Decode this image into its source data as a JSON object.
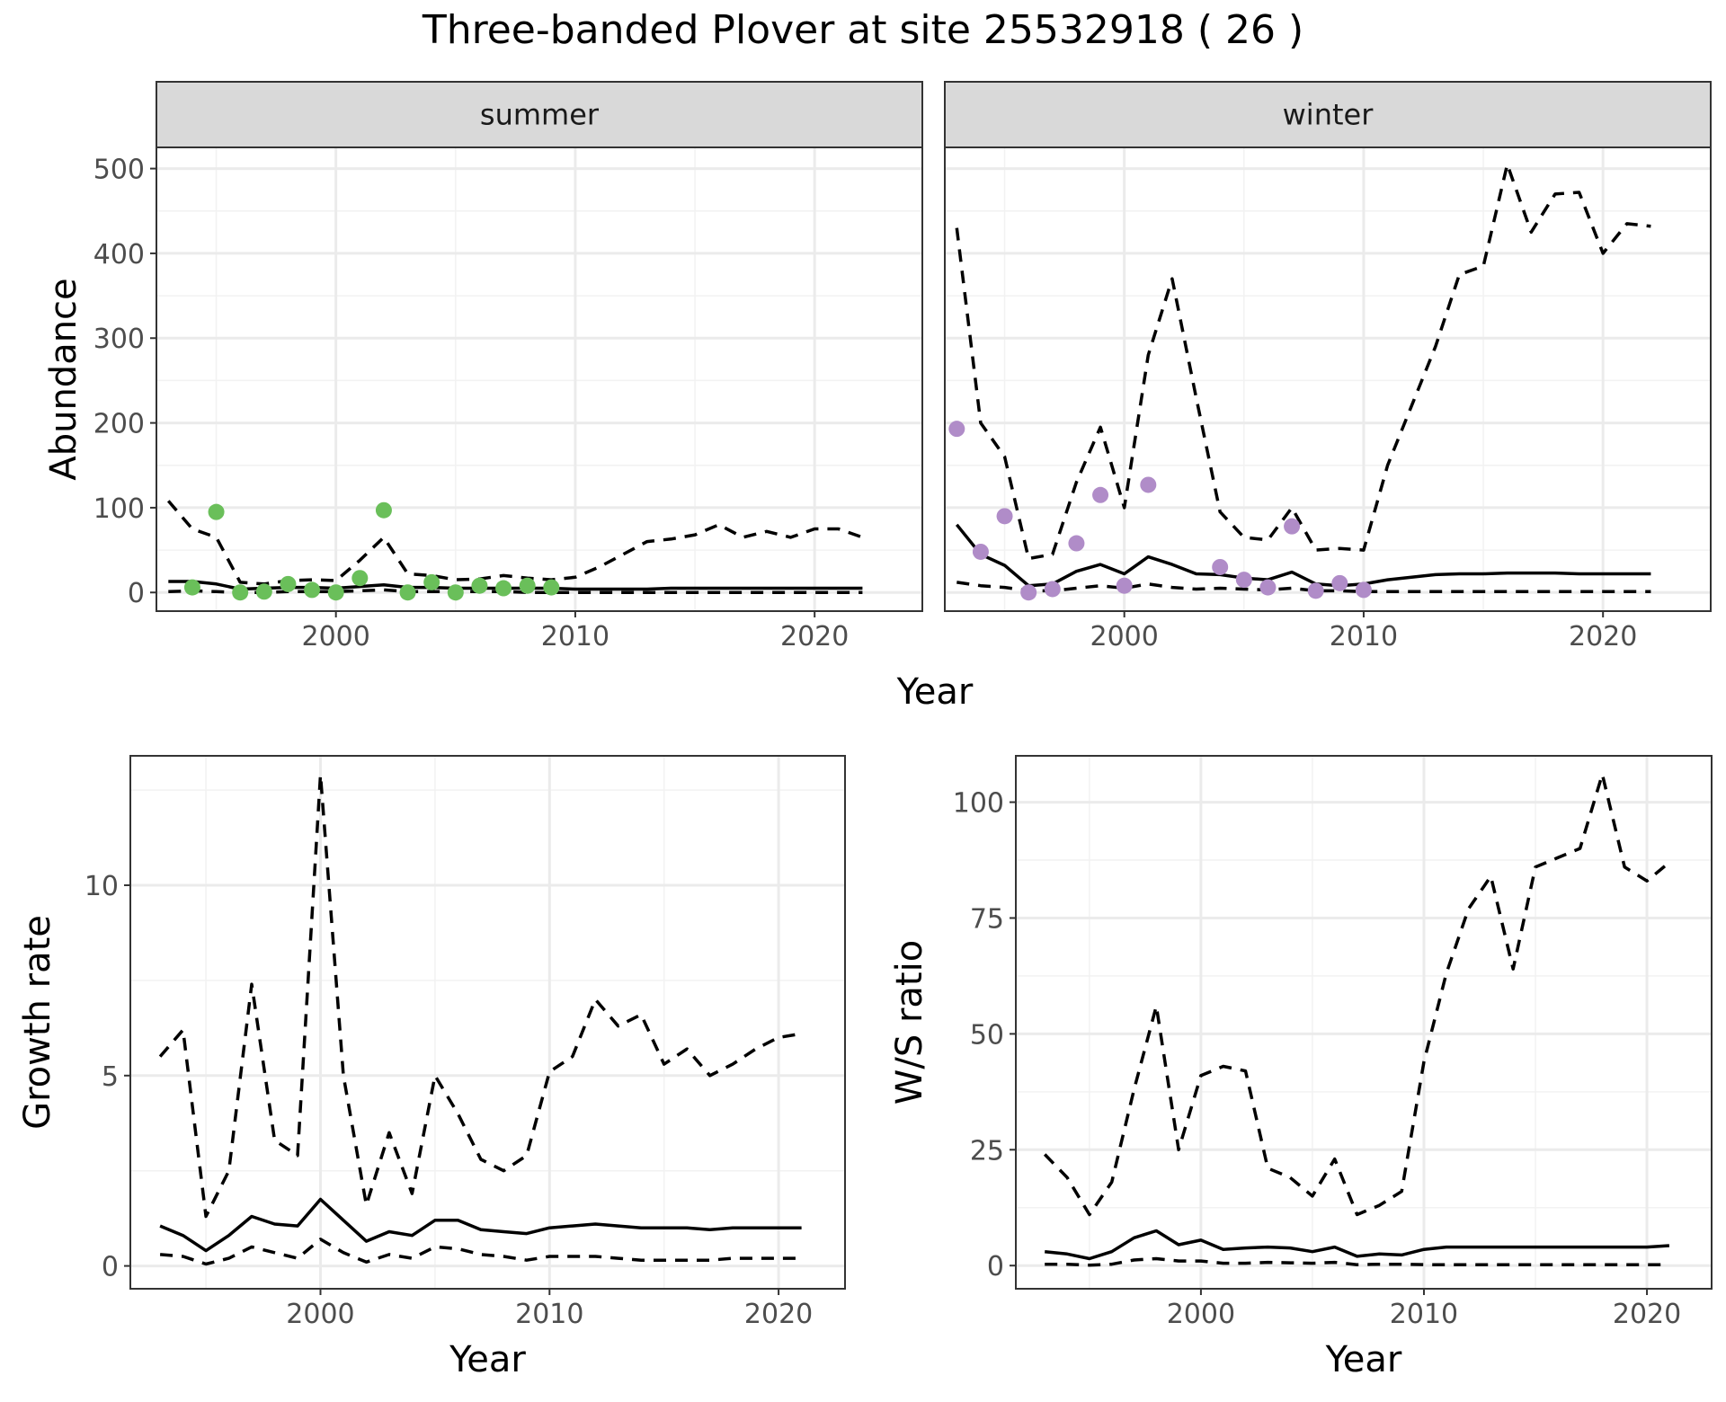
{
  "chart_data": {
    "title": "Three-banded Plover at site 25532918 ( 26 )",
    "panels": [
      {
        "type": "line",
        "facet": "summer",
        "xlabel": "",
        "ylabel": "Abundance",
        "xlim": [
          1992.5,
          2024.5
        ],
        "ylim": [
          -22,
          525
        ],
        "xticks": [
          2000,
          2010,
          2020
        ],
        "yticks": [
          0,
          100,
          200,
          300,
          400,
          500
        ],
        "point_color": "#6abf5a",
        "series": [
          {
            "style": "solid",
            "x": [
              1993,
              1994,
              1995,
              1996,
              1997,
              1998,
              1999,
              2000,
              2001,
              2002,
              2003,
              2004,
              2005,
              2006,
              2007,
              2008,
              2009,
              2010,
              2011,
              2012,
              2013,
              2014,
              2015,
              2016,
              2017,
              2018,
              2019,
              2020,
              2021,
              2022
            ],
            "y": [
              13,
              13,
              10,
              4,
              5,
              6,
              6,
              5,
              7,
              9,
              6,
              6,
              5,
              5,
              5,
              5,
              5,
              4,
              4,
              4,
              4,
              5,
              5,
              5,
              5,
              5,
              5,
              5,
              5,
              5
            ]
          },
          {
            "style": "dashed",
            "x": [
              1993,
              1994,
              1995,
              1996,
              1997,
              1998,
              1999,
              2000,
              2001,
              2002,
              2003,
              2004,
              2005,
              2006,
              2007,
              2008,
              2009,
              2010,
              2011,
              2012,
              2013,
              2014,
              2015,
              2016,
              2017,
              2018,
              2019,
              2020,
              2021,
              2022
            ],
            "y": [
              108,
              75,
              65,
              12,
              10,
              14,
              15,
              14,
              38,
              65,
              22,
              20,
              15,
              16,
              20,
              17,
              15,
              18,
              30,
              45,
              60,
              63,
              68,
              80,
              65,
              72,
              65,
              75,
              75,
              65
            ]
          },
          {
            "style": "dashed",
            "x": [
              1993,
              1994,
              1995,
              1996,
              1997,
              1998,
              1999,
              2000,
              2001,
              2002,
              2003,
              2004,
              2005,
              2006,
              2007,
              2008,
              2009,
              2010,
              2011,
              2012,
              2013,
              2014,
              2015,
              2016,
              2017,
              2018,
              2019,
              2020,
              2021,
              2022
            ],
            "y": [
              1,
              2,
              1,
              0,
              0,
              1,
              1,
              1,
              2,
              3,
              1,
              1,
              1,
              1,
              1,
              0,
              0,
              0,
              0,
              0,
              0,
              0,
              0,
              0,
              0,
              0,
              0,
              0,
              0,
              0
            ]
          }
        ],
        "points": {
          "x": [
            1994,
            1995,
            1996,
            1997,
            1998,
            1999,
            2000,
            2001,
            2002,
            2003,
            2004,
            2005,
            2006,
            2007,
            2008,
            2009
          ],
          "y": [
            6,
            95,
            0,
            1,
            10,
            3,
            0,
            17,
            97,
            0,
            12,
            0,
            8,
            5,
            8,
            6
          ]
        }
      },
      {
        "type": "line",
        "facet": "winter",
        "xlabel": "",
        "ylabel": "",
        "xlim": [
          1992.5,
          2024.5
        ],
        "ylim": [
          -22,
          525
        ],
        "xticks": [
          2000,
          2010,
          2020
        ],
        "yticks": [
          0,
          100,
          200,
          300,
          400,
          500
        ],
        "point_color": "#b08cc8",
        "series": [
          {
            "style": "solid",
            "x": [
              1993,
              1994,
              1995,
              1996,
              1997,
              1998,
              1999,
              2000,
              2001,
              2002,
              2003,
              2004,
              2005,
              2006,
              2007,
              2008,
              2009,
              2010,
              2011,
              2012,
              2013,
              2014,
              2015,
              2016,
              2017,
              2018,
              2019,
              2020,
              2021,
              2022
            ],
            "y": [
              80,
              45,
              32,
              8,
              10,
              25,
              33,
              22,
              42,
              33,
              22,
              21,
              17,
              15,
              24,
              10,
              8,
              10,
              15,
              18,
              21,
              22,
              22,
              23,
              23,
              23,
              22,
              22,
              22,
              22
            ]
          },
          {
            "style": "dashed",
            "x": [
              1993,
              1994,
              1995,
              1996,
              1997,
              1998,
              1999,
              2000,
              2001,
              2002,
              2003,
              2004,
              2005,
              2006,
              2007,
              2008,
              2009,
              2010,
              2011,
              2012,
              2013,
              2014,
              2015,
              2016,
              2017,
              2018,
              2019,
              2020,
              2021,
              2022
            ],
            "y": [
              430,
              200,
              160,
              40,
              45,
              130,
              195,
              100,
              280,
              370,
              230,
              95,
              65,
              62,
              100,
              50,
              52,
              50,
              150,
              220,
              290,
              375,
              385,
              505,
              425,
              470,
              472,
              400,
              435,
              432
            ]
          },
          {
            "style": "dashed",
            "x": [
              1993,
              1994,
              1995,
              1996,
              1997,
              1998,
              1999,
              2000,
              2001,
              2002,
              2003,
              2004,
              2005,
              2006,
              2007,
              2008,
              2009,
              2010,
              2011,
              2012,
              2013,
              2014,
              2015,
              2016,
              2017,
              2018,
              2019,
              2020,
              2021,
              2022
            ],
            "y": [
              12,
              8,
              6,
              2,
              2,
              5,
              8,
              5,
              10,
              6,
              4,
              5,
              4,
              3,
              5,
              2,
              2,
              1,
              1,
              1,
              1,
              1,
              1,
              1,
              1,
              1,
              1,
              1,
              1,
              1
            ]
          }
        ],
        "points": {
          "x": [
            1993,
            1994,
            1995,
            1996,
            1997,
            1998,
            1999,
            2000,
            2001,
            2004,
            2005,
            2006,
            2007,
            2008,
            2009,
            2010
          ],
          "y": [
            193,
            48,
            90,
            0,
            4,
            58,
            115,
            8,
            127,
            30,
            15,
            6,
            78,
            2,
            11,
            3
          ]
        }
      },
      {
        "type": "line",
        "facet": "",
        "xlabel": "Year",
        "ylabel": "Growth rate",
        "xlim": [
          1991.7,
          2022.9
        ],
        "ylim": [
          -0.6,
          13.4
        ],
        "xticks": [
          2000,
          2010,
          2020
        ],
        "yticks": [
          0,
          5,
          10
        ],
        "series": [
          {
            "style": "solid",
            "x": [
              1993,
              1994,
              1995,
              1996,
              1997,
              1998,
              1999,
              2000,
              2001,
              2002,
              2003,
              2004,
              2005,
              2006,
              2007,
              2008,
              2009,
              2010,
              2011,
              2012,
              2013,
              2014,
              2015,
              2016,
              2017,
              2018,
              2019,
              2020,
              2021
            ],
            "y": [
              1.05,
              0.8,
              0.4,
              0.8,
              1.3,
              1.1,
              1.05,
              1.75,
              1.2,
              0.65,
              0.9,
              0.8,
              1.2,
              1.2,
              0.95,
              0.9,
              0.85,
              1.0,
              1.05,
              1.1,
              1.05,
              1.0,
              1.0,
              1.0,
              0.95,
              1.0,
              1.0,
              1.0,
              1.0
            ]
          },
          {
            "style": "dashed",
            "x": [
              1993,
              1994,
              1995,
              1996,
              1997,
              1998,
              1999,
              2000,
              2001,
              2002,
              2003,
              2004,
              2005,
              2006,
              2007,
              2008,
              2009,
              2010,
              2011,
              2012,
              2013,
              2014,
              2015,
              2016,
              2017,
              2018,
              2019,
              2020,
              2021
            ],
            "y": [
              5.5,
              6.2,
              1.3,
              2.5,
              7.4,
              3.3,
              2.9,
              12.9,
              5.0,
              1.6,
              3.5,
              1.9,
              5.0,
              4.0,
              2.8,
              2.5,
              2.9,
              5.1,
              5.5,
              7.0,
              6.3,
              6.6,
              5.3,
              5.7,
              5.0,
              5.3,
              5.7,
              6.0,
              6.1
            ]
          },
          {
            "style": "dashed",
            "x": [
              1993,
              1994,
              1995,
              1996,
              1997,
              1998,
              1999,
              2000,
              2001,
              2002,
              2003,
              2004,
              2005,
              2006,
              2007,
              2008,
              2009,
              2010,
              2011,
              2012,
              2013,
              2014,
              2015,
              2016,
              2017,
              2018,
              2019,
              2020,
              2021
            ],
            "y": [
              0.3,
              0.25,
              0.05,
              0.2,
              0.5,
              0.35,
              0.2,
              0.7,
              0.35,
              0.1,
              0.3,
              0.2,
              0.5,
              0.45,
              0.3,
              0.25,
              0.15,
              0.25,
              0.25,
              0.25,
              0.2,
              0.15,
              0.15,
              0.15,
              0.15,
              0.2,
              0.2,
              0.2,
              0.2
            ]
          }
        ]
      },
      {
        "type": "line",
        "facet": "",
        "xlabel": "Year",
        "ylabel": "W/S ratio",
        "xlim": [
          1991.7,
          2022.9
        ],
        "ylim": [
          -5,
          110
        ],
        "xticks": [
          2000,
          2010,
          2020
        ],
        "yticks": [
          0,
          25,
          50,
          75,
          100
        ],
        "series": [
          {
            "style": "solid",
            "x": [
              1993,
              1994,
              1995,
              1996,
              1997,
              1998,
              1999,
              2000,
              2001,
              2002,
              2003,
              2004,
              2005,
              2006,
              2007,
              2008,
              2009,
              2010,
              2011,
              2012,
              2013,
              2014,
              2015,
              2016,
              2017,
              2018,
              2019,
              2020,
              2021
            ],
            "y": [
              3,
              2.5,
              1.5,
              3,
              6,
              7.5,
              4.5,
              5.5,
              3.5,
              3.8,
              4,
              3.8,
              3,
              4,
              2,
              2.5,
              2.3,
              3.5,
              4,
              4,
              4,
              4,
              4,
              4,
              4,
              4,
              4,
              4,
              4.3
            ]
          },
          {
            "style": "dashed",
            "x": [
              1993,
              1994,
              1995,
              1996,
              1997,
              1998,
              1999,
              2000,
              2001,
              2002,
              2003,
              2004,
              2005,
              2006,
              2007,
              2008,
              2009,
              2010,
              2011,
              2012,
              2013,
              2014,
              2015,
              2016,
              2017,
              2018,
              2019,
              2020,
              2021
            ],
            "y": [
              24,
              19,
              11,
              18,
              38,
              56,
              25,
              41,
              43,
              42,
              21,
              19,
              15,
              23,
              11,
              13,
              16,
              44,
              63,
              77,
              84,
              64,
              86,
              88,
              90,
              106,
              86,
              83,
              87
            ]
          },
          {
            "style": "dashed",
            "x": [
              1993,
              1994,
              1995,
              1996,
              1997,
              1998,
              1999,
              2000,
              2001,
              2002,
              2003,
              2004,
              2005,
              2006,
              2007,
              2008,
              2009,
              2010,
              2011,
              2012,
              2013,
              2014,
              2015,
              2016,
              2017,
              2018,
              2019,
              2020,
              2021
            ],
            "y": [
              0.3,
              0.3,
              0.1,
              0.3,
              1.2,
              1.5,
              1,
              1,
              0.5,
              0.5,
              0.7,
              0.6,
              0.5,
              0.7,
              0.2,
              0.3,
              0.3,
              0.2,
              0.2,
              0.2,
              0.2,
              0.2,
              0.2,
              0.2,
              0.2,
              0.2,
              0.2,
              0.2,
              0.2
            ]
          }
        ]
      }
    ],
    "top_row_xlabel": "Year"
  }
}
